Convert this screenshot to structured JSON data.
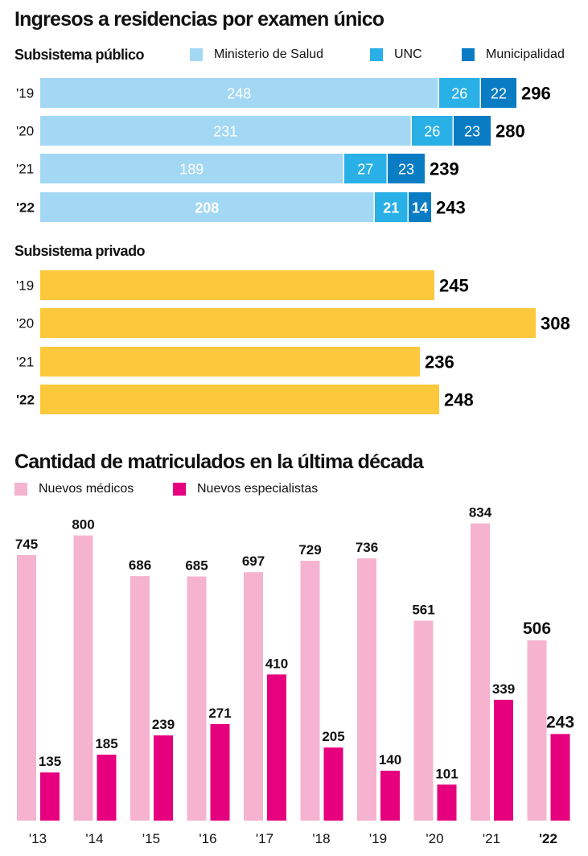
{
  "chart_data": [
    {
      "type": "bar",
      "orientation": "horizontal",
      "stacked": true,
      "title": "Ingresos a residencias por examen único",
      "subtitle": "Subsistema público",
      "categories": [
        "'19",
        "'20",
        "'21",
        "'22"
      ],
      "series": [
        {
          "name": "Ministerio de Salud",
          "color": "#a3d8f4",
          "values": [
            248,
            231,
            189,
            208
          ]
        },
        {
          "name": "UNC",
          "color": "#29b0e6",
          "values": [
            26,
            26,
            27,
            21
          ]
        },
        {
          "name": "Municipalidad",
          "color": "#0a7cc4",
          "values": [
            22,
            23,
            23,
            14
          ]
        }
      ],
      "totals": [
        296,
        280,
        239,
        243
      ],
      "legend": "top-right",
      "grid": false
    },
    {
      "type": "bar",
      "orientation": "horizontal",
      "subtitle": "Subsistema privado",
      "categories": [
        "'19",
        "'20",
        "'21",
        "'22"
      ],
      "series": [
        {
          "name": "Subsistema privado",
          "color": "#fcc93c",
          "values": [
            245,
            308,
            236,
            248
          ]
        }
      ],
      "grid": false
    },
    {
      "type": "bar",
      "orientation": "vertical",
      "title": "Cantidad de matriculados en la última década",
      "categories": [
        "'13",
        "'14",
        "'15",
        "'16",
        "'17",
        "'18",
        "'19",
        "'20",
        "'21",
        "'22"
      ],
      "series": [
        {
          "name": "Nuevos médicos",
          "color": "#f5b3d0",
          "values": [
            745,
            800,
            686,
            685,
            697,
            729,
            736,
            561,
            834,
            506
          ]
        },
        {
          "name": "Nuevos especialistas",
          "color": "#e6007e",
          "values": [
            135,
            185,
            239,
            271,
            410,
            205,
            140,
            101,
            339,
            243
          ]
        }
      ],
      "legend": "top-left",
      "grid": false
    }
  ],
  "labels": {
    "title1": "Ingresos a residencias por examen único",
    "public_subtitle": "Subsistema público",
    "private_subtitle": "Subsistema privado",
    "title2": "Cantidad de matriculados en la última década",
    "legend_public": [
      "Ministerio de Salud",
      "UNC",
      "Municipalidad"
    ],
    "legend_decade": [
      "Nuevos médicos",
      "Nuevos especialistas"
    ]
  }
}
